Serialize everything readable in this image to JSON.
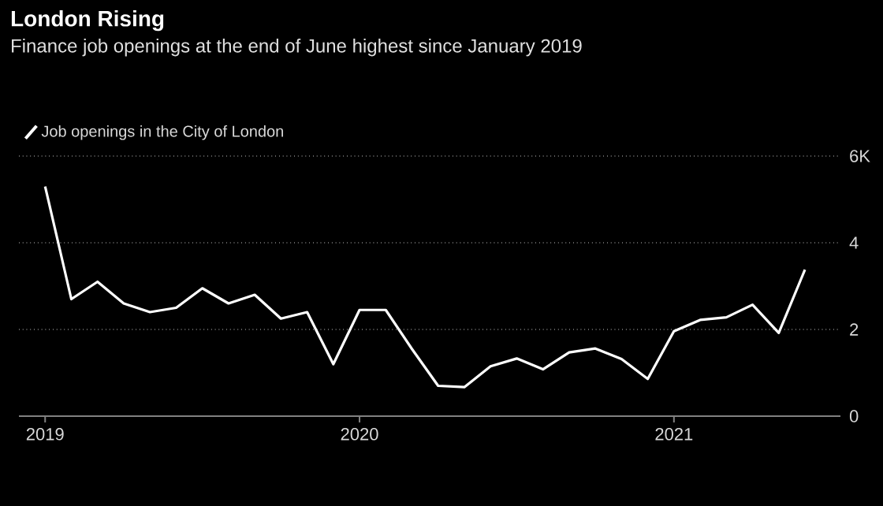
{
  "chart_data": {
    "type": "line",
    "title": "London Rising",
    "subtitle": "Finance job openings at the end of June highest since January 2019",
    "x": [
      "2019-01",
      "2019-02",
      "2019-03",
      "2019-04",
      "2019-05",
      "2019-06",
      "2019-07",
      "2019-08",
      "2019-09",
      "2019-10",
      "2019-11",
      "2019-12",
      "2020-01",
      "2020-02",
      "2020-03",
      "2020-04",
      "2020-05",
      "2020-06",
      "2020-07",
      "2020-08",
      "2020-09",
      "2020-10",
      "2020-11",
      "2020-12",
      "2021-01",
      "2021-02",
      "2021-03",
      "2021-04",
      "2021-05",
      "2021-06"
    ],
    "series": [
      {
        "name": "Job openings in the City of London",
        "color": "#ffffff",
        "values": [
          5.3,
          2.7,
          3.1,
          2.6,
          2.4,
          2.5,
          2.95,
          2.6,
          2.8,
          2.25,
          2.4,
          1.2,
          2.45,
          2.45,
          1.55,
          0.7,
          0.67,
          1.15,
          1.33,
          1.08,
          1.47,
          1.56,
          1.32,
          0.86,
          1.96,
          2.22,
          2.28,
          2.57,
          1.92,
          3.38
        ]
      }
    ],
    "xlim": [
      "2018-12",
      "2021-07-12"
    ],
    "xticks": [
      "2019",
      "2020",
      "2021"
    ],
    "ylim": [
      0,
      6
    ],
    "yticks": [
      0,
      2,
      4,
      {
        "value": 6,
        "label": "6K"
      }
    ],
    "grid": "y",
    "legend": "top left",
    "line_style": "solid",
    "marker": "none"
  }
}
